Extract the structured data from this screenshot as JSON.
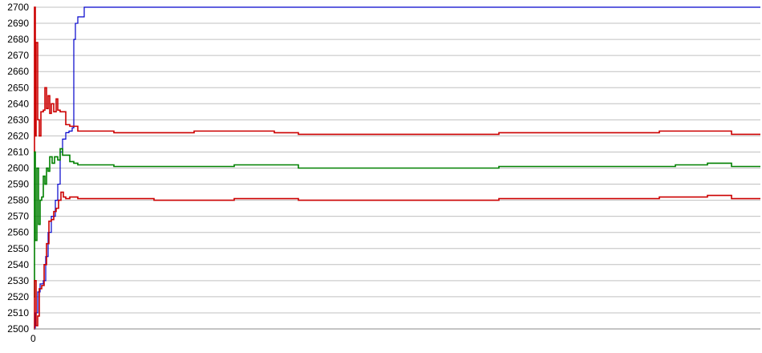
{
  "chart_data": {
    "type": "line",
    "title": "",
    "xlabel": "",
    "ylabel": "",
    "ylim": [
      2500,
      2700
    ],
    "yticks": [
      2500,
      2510,
      2520,
      2530,
      2540,
      2550,
      2560,
      2570,
      2580,
      2590,
      2600,
      2610,
      2620,
      2630,
      2640,
      2650,
      2660,
      2670,
      2680,
      2690,
      2700
    ],
    "xlim": [
      0,
      906
    ],
    "x_tick_labels": [
      "0"
    ],
    "grid": true,
    "legend": "none",
    "series": [
      {
        "color": "#0000cc",
        "points": [
          [
            0,
            2500
          ],
          [
            2,
            2510
          ],
          [
            5,
            2523
          ],
          [
            8,
            2528
          ],
          [
            12,
            2530
          ],
          [
            15,
            2545
          ],
          [
            18,
            2560
          ],
          [
            22,
            2570
          ],
          [
            27,
            2580
          ],
          [
            30,
            2590
          ],
          [
            33,
            2610
          ],
          [
            36,
            2618
          ],
          [
            40,
            2622
          ],
          [
            44,
            2623
          ],
          [
            48,
            2625
          ],
          [
            50,
            2680
          ],
          [
            52,
            2690
          ],
          [
            55,
            2694
          ],
          [
            60,
            2694
          ],
          [
            63,
            2700
          ],
          [
            906,
            2700
          ]
        ]
      },
      {
        "color": "#cc0000",
        "points": [
          [
            0,
            2610
          ],
          [
            1,
            2700
          ],
          [
            2,
            2620
          ],
          [
            3,
            2678
          ],
          [
            5,
            2630
          ],
          [
            7,
            2620
          ],
          [
            9,
            2635
          ],
          [
            12,
            2636
          ],
          [
            14,
            2650
          ],
          [
            16,
            2637
          ],
          [
            18,
            2645
          ],
          [
            20,
            2634
          ],
          [
            22,
            2640
          ],
          [
            25,
            2635
          ],
          [
            28,
            2643
          ],
          [
            30,
            2636
          ],
          [
            33,
            2635
          ],
          [
            36,
            2635
          ],
          [
            40,
            2627
          ],
          [
            45,
            2626
          ],
          [
            50,
            2626
          ],
          [
            55,
            2623
          ],
          [
            70,
            2623
          ],
          [
            100,
            2622
          ],
          [
            150,
            2622
          ],
          [
            200,
            2623
          ],
          [
            250,
            2623
          ],
          [
            300,
            2622
          ],
          [
            330,
            2621
          ],
          [
            400,
            2621
          ],
          [
            500,
            2621
          ],
          [
            580,
            2622
          ],
          [
            700,
            2622
          ],
          [
            780,
            2623
          ],
          [
            850,
            2623
          ],
          [
            870,
            2621
          ],
          [
            906,
            2621
          ]
        ]
      },
      {
        "color": "#008000",
        "points": [
          [
            0,
            2520
          ],
          [
            1,
            2610
          ],
          [
            2,
            2555
          ],
          [
            4,
            2600
          ],
          [
            6,
            2565
          ],
          [
            8,
            2580
          ],
          [
            10,
            2582
          ],
          [
            12,
            2595
          ],
          [
            14,
            2590
          ],
          [
            16,
            2600
          ],
          [
            18,
            2598
          ],
          [
            20,
            2607
          ],
          [
            23,
            2603
          ],
          [
            26,
            2607
          ],
          [
            30,
            2605
          ],
          [
            33,
            2612
          ],
          [
            36,
            2608
          ],
          [
            40,
            2608
          ],
          [
            45,
            2604
          ],
          [
            50,
            2603
          ],
          [
            55,
            2602
          ],
          [
            100,
            2601
          ],
          [
            200,
            2601
          ],
          [
            250,
            2602
          ],
          [
            300,
            2602
          ],
          [
            330,
            2600
          ],
          [
            500,
            2600
          ],
          [
            580,
            2601
          ],
          [
            700,
            2601
          ],
          [
            800,
            2602
          ],
          [
            840,
            2603
          ],
          [
            860,
            2603
          ],
          [
            870,
            2601
          ],
          [
            906,
            2601
          ]
        ]
      },
      {
        "color": "#cc0000",
        "points": [
          [
            0,
            2500
          ],
          [
            1,
            2530
          ],
          [
            3,
            2502
          ],
          [
            5,
            2508
          ],
          [
            7,
            2525
          ],
          [
            10,
            2527
          ],
          [
            13,
            2540
          ],
          [
            16,
            2553
          ],
          [
            19,
            2567
          ],
          [
            22,
            2568
          ],
          [
            25,
            2573
          ],
          [
            28,
            2575
          ],
          [
            31,
            2580
          ],
          [
            34,
            2585
          ],
          [
            37,
            2582
          ],
          [
            40,
            2581
          ],
          [
            45,
            2582
          ],
          [
            55,
            2581
          ],
          [
            100,
            2581
          ],
          [
            150,
            2580
          ],
          [
            200,
            2580
          ],
          [
            250,
            2581
          ],
          [
            300,
            2581
          ],
          [
            330,
            2580
          ],
          [
            550,
            2580
          ],
          [
            580,
            2581
          ],
          [
            700,
            2581
          ],
          [
            780,
            2582
          ],
          [
            840,
            2583
          ],
          [
            870,
            2581
          ],
          [
            906,
            2581
          ]
        ]
      }
    ]
  }
}
